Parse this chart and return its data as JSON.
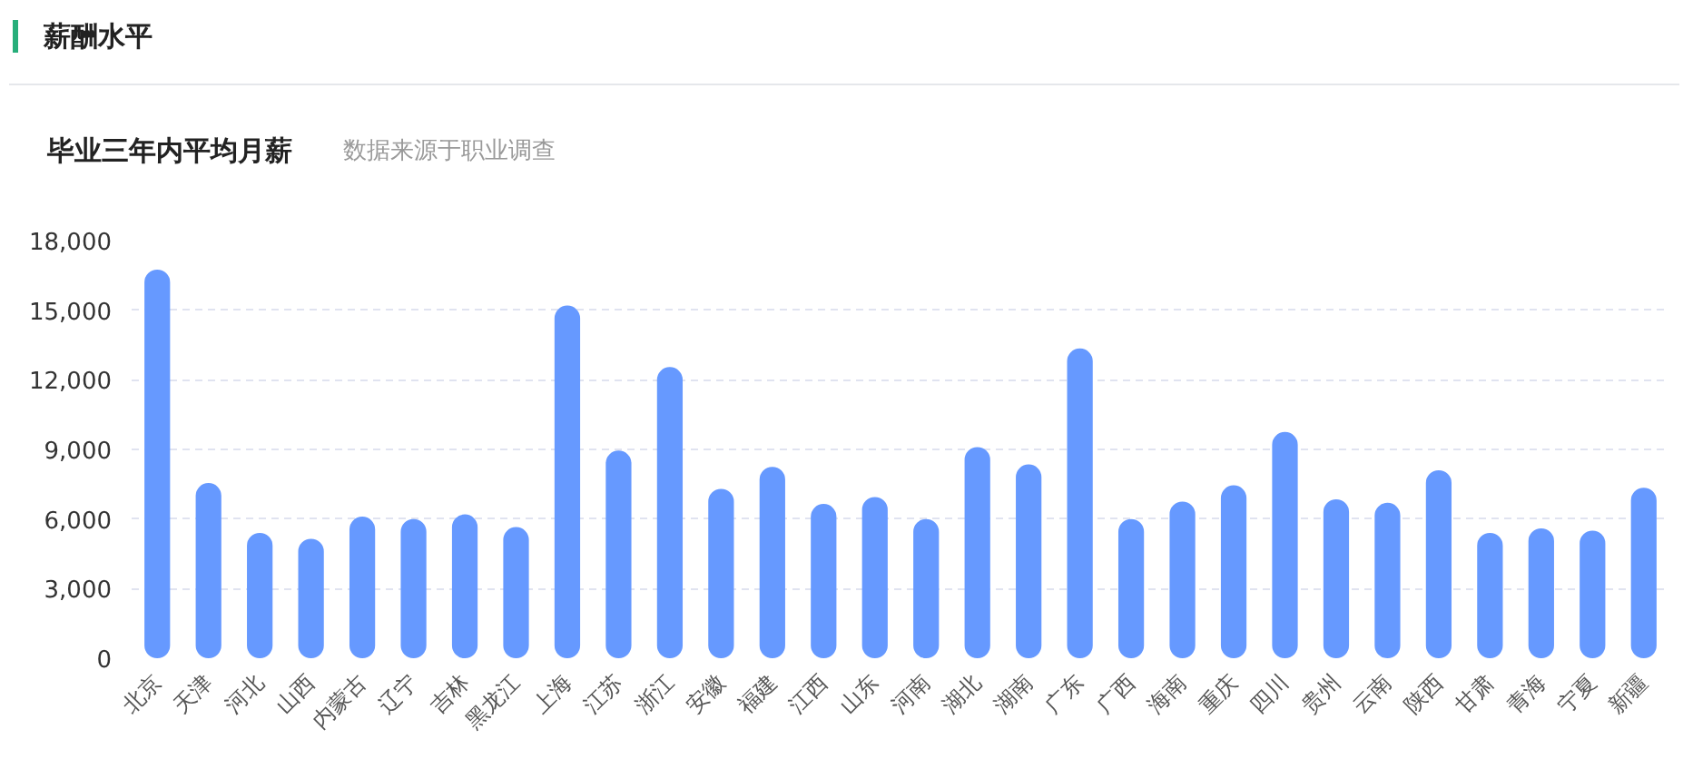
{
  "chart_data": {
    "type": "bar",
    "title": "毕业三年内平均月薪",
    "subtitle": "数据来源于职业调查",
    "annotations": [
      "薪酬水平"
    ],
    "categories": [
      "北京",
      "天津",
      "河北",
      "山西",
      "内蒙古",
      "辽宁",
      "吉林",
      "黑龙江",
      "上海",
      "江苏",
      "浙江",
      "安徽",
      "福建",
      "江西",
      "山东",
      "河南",
      "湖北",
      "湖南",
      "广东",
      "广西",
      "海南",
      "重庆",
      "四川",
      "贵州",
      "云南",
      "陕西",
      "甘肃",
      "青海",
      "宁夏",
      "新疆"
    ],
    "values": [
      16750,
      7550,
      5400,
      5150,
      6100,
      6000,
      6200,
      5650,
      15200,
      8950,
      12550,
      7300,
      8250,
      6650,
      6950,
      6000,
      9100,
      8350,
      13350,
      6000,
      6750,
      7450,
      9750,
      6850,
      6700,
      8100,
      5400,
      5600,
      5500,
      7350
    ],
    "color": "#6699ff",
    "ylim": [
      0,
      18000
    ],
    "yticks": [
      {
        "value": 0,
        "label": "0"
      },
      {
        "value": 3000,
        "label": "3,000"
      },
      {
        "value": 6000,
        "label": "6,000"
      },
      {
        "value": 9000,
        "label": "9,000"
      },
      {
        "value": 12000,
        "label": "12,000"
      },
      {
        "value": 15000,
        "label": "15,000"
      },
      {
        "value": 18000,
        "label": "18,000"
      }
    ],
    "grid": "y"
  }
}
